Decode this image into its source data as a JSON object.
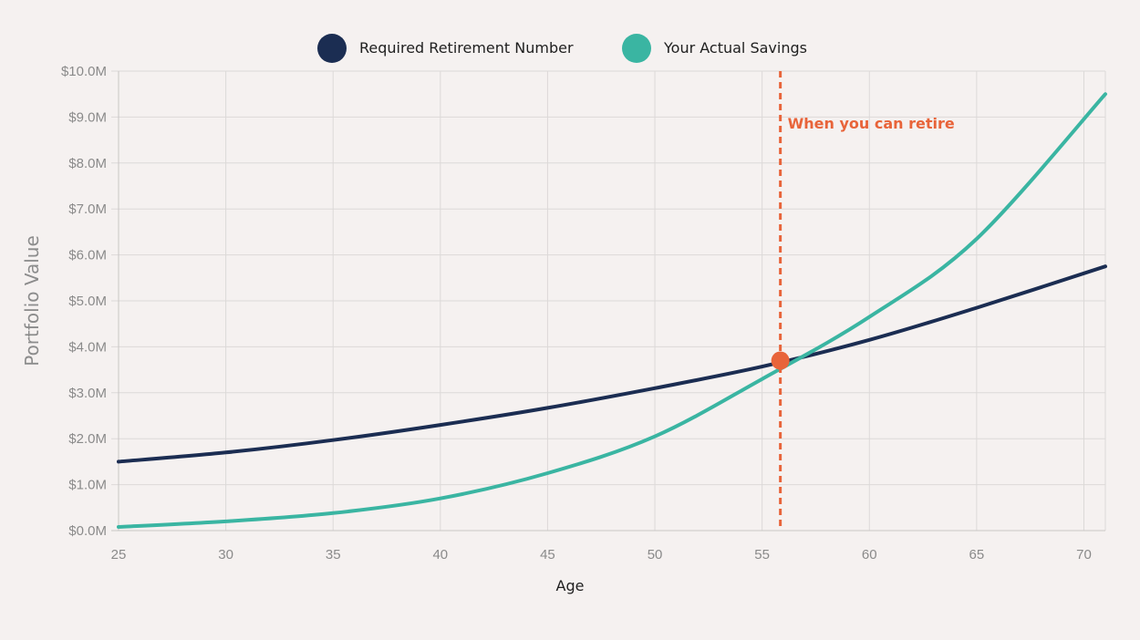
{
  "chart_data": {
    "type": "line",
    "xlabel": "Age",
    "ylabel": "Portfolio Value",
    "xlim": [
      25,
      71
    ],
    "ylim": [
      0,
      10
    ],
    "y_unit": "millions USD",
    "x_ticks": [
      25,
      30,
      35,
      40,
      45,
      50,
      55,
      60,
      65,
      70
    ],
    "y_ticks": [
      "$0.0M",
      "$1.0M",
      "$2.0M",
      "$3.0M",
      "$4.0M",
      "$5.0M",
      "$6.0M",
      "$7.0M",
      "$8.0M",
      "$9.0M",
      "$10.0M"
    ],
    "grid": true,
    "legend_position": "top-center",
    "series": [
      {
        "name": "Required Retirement Number",
        "color": "#1b2d52",
        "x": [
          25,
          30,
          35,
          40,
          45,
          50,
          55,
          60,
          65,
          71
        ],
        "y": [
          1.5,
          1.7,
          1.97,
          2.3,
          2.67,
          3.1,
          3.57,
          4.15,
          4.85,
          5.75
        ]
      },
      {
        "name": "Your Actual Savings",
        "color": "#3ab5a2",
        "x": [
          25,
          30,
          35,
          40,
          45,
          50,
          55,
          60,
          65,
          71
        ],
        "y": [
          0.08,
          0.2,
          0.38,
          0.7,
          1.25,
          2.05,
          3.3,
          4.65,
          6.35,
          9.5
        ]
      }
    ],
    "annotations": [
      {
        "label": "When you can retire",
        "x": 55.85,
        "y": 3.7,
        "color": "#e8643a",
        "style": "dashed vertical line with intersection marker"
      }
    ]
  }
}
